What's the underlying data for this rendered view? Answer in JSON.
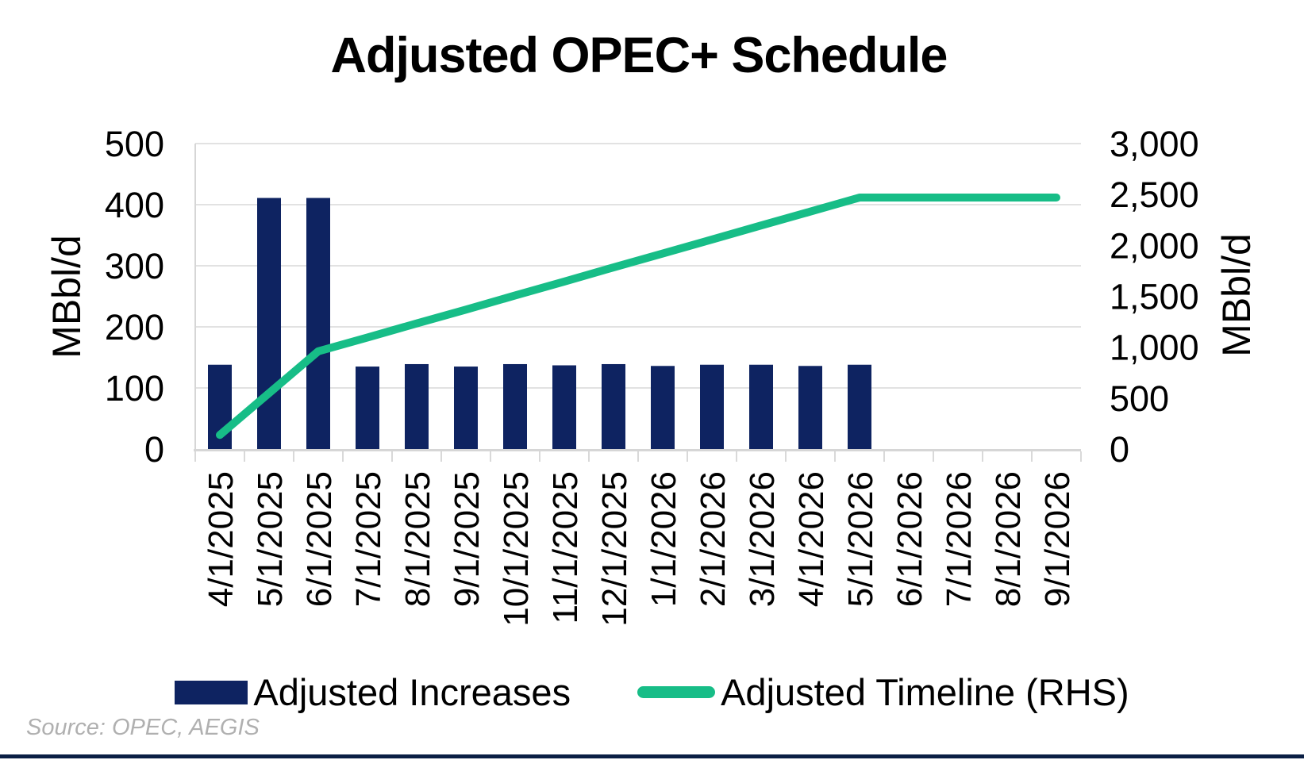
{
  "title": "Adjusted OPEC+ Schedule",
  "source_note": "Source: OPEC, AEGIS",
  "legend": {
    "items": [
      {
        "label": "Adjusted Increases",
        "swatch": "bar-swatch",
        "color": "#0E2361"
      },
      {
        "label": "Adjusted Timeline (RHS)",
        "swatch": "line-swatch",
        "color": "#17BD87"
      }
    ]
  },
  "colors": {
    "bar": "#0E2361",
    "line": "#17BD87",
    "gridline": "#e2e2e2",
    "axis_line": "#d6d6d6",
    "tick_mark": "#d9d9d9",
    "source_text": "#b0b0b0",
    "bottom_rule": "#0A1F44",
    "title_text": "#000000"
  },
  "chart_data": {
    "type": "bar",
    "subtype": "bar-and-line-dual-axis",
    "title": "Adjusted OPEC+ Schedule",
    "grid": "horizontal-on",
    "legend_position": "bottom",
    "categories": [
      "4/1/2025",
      "5/1/2025",
      "6/1/2025",
      "7/1/2025",
      "8/1/2025",
      "9/1/2025",
      "10/1/2025",
      "11/1/2025",
      "12/1/2025",
      "1/1/2026",
      "2/1/2026",
      "3/1/2026",
      "4/1/2026",
      "5/1/2026",
      "6/1/2026",
      "7/1/2026",
      "8/1/2026",
      "9/1/2026"
    ],
    "series": [
      {
        "name": "Adjusted Increases",
        "type": "bar",
        "axis": "left",
        "color": "#0E2361",
        "values": [
          138,
          411,
          411,
          135,
          139,
          135,
          139,
          137,
          139,
          136,
          138,
          138,
          136,
          138,
          null,
          null,
          null,
          null
        ]
      },
      {
        "name": "Adjusted Timeline (RHS)",
        "type": "line",
        "axis": "right",
        "color": "#17BD87",
        "values": [
          138,
          549,
          960,
          1095,
          1234,
          1369,
          1508,
          1645,
          1784,
          1920,
          2058,
          2196,
          2332,
          2470,
          2470,
          2470,
          2470,
          2470
        ]
      }
    ],
    "left_axis": {
      "unit": "MBbl/d",
      "min": 0,
      "max": 500,
      "step": 100,
      "tick_labels": [
        "0",
        "100",
        "200",
        "300",
        "400",
        "500"
      ]
    },
    "right_axis": {
      "unit": "MBbl/d",
      "min": 0,
      "max": 3000,
      "step": 500,
      "tick_labels": [
        "0",
        "500",
        "1,000",
        "1,500",
        "2,000",
        "2,500",
        "3,000"
      ]
    }
  }
}
